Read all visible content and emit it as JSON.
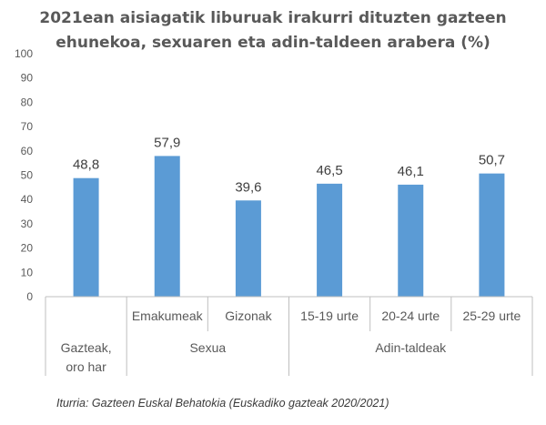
{
  "chart_data": {
    "type": "bar",
    "title_lines": [
      "2021ean aisiagatik liburuak irakurri dituzten gazteen",
      "ehunekoa, sexuaren eta adin-taldeen arabera (%)"
    ],
    "categories": [
      "",
      "Emakumeak",
      "Gizonak",
      "15-19 urte",
      "20-24 urte",
      "25-29 urte"
    ],
    "values": [
      48.8,
      57.9,
      39.6,
      46.5,
      46.1,
      50.7
    ],
    "value_labels": [
      "48,8",
      "57,9",
      "39,6",
      "46,5",
      "46,1",
      "50,7"
    ],
    "groups": [
      {
        "label_lines": [
          "Gazteak,",
          "oro har"
        ],
        "start": 0,
        "end": 0
      },
      {
        "label_lines": [
          "Sexua"
        ],
        "start": 1,
        "end": 2
      },
      {
        "label_lines": [
          "Adin-taldeak"
        ],
        "start": 3,
        "end": 5
      }
    ],
    "yticks": [
      0,
      10,
      20,
      30,
      40,
      50,
      60,
      70,
      80,
      90,
      100
    ],
    "ylim": [
      0,
      100
    ],
    "grid": false,
    "bar_color": "#5b9bd5"
  },
  "source": "Iturria: Gazteen Euskal Behatokia (Euskadiko gazteak 2020/2021)"
}
